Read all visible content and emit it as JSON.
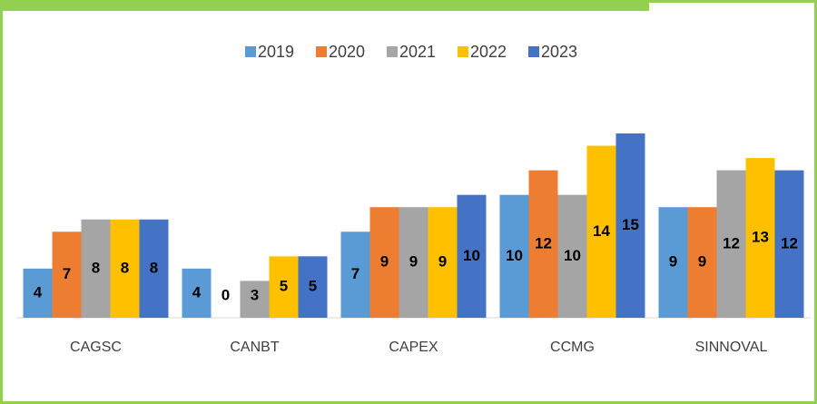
{
  "chart_data": {
    "type": "bar",
    "categories": [
      "CAGSC",
      "CANBT",
      "CAPEX",
      "CCMG",
      "SINNOVAL"
    ],
    "series": [
      {
        "name": "2019",
        "color": "#5b9bd5",
        "values": [
          4,
          4,
          7,
          10,
          9
        ]
      },
      {
        "name": "2020",
        "color": "#ed7d31",
        "values": [
          7,
          0,
          9,
          12,
          9
        ]
      },
      {
        "name": "2021",
        "color": "#a5a5a5",
        "values": [
          8,
          3,
          9,
          10,
          12
        ]
      },
      {
        "name": "2022",
        "color": "#ffc000",
        "values": [
          8,
          5,
          9,
          14,
          13
        ]
      },
      {
        "name": "2023",
        "color": "#4472c4",
        "values": [
          8,
          5,
          10,
          15,
          12
        ]
      }
    ],
    "legend": "top"
  }
}
